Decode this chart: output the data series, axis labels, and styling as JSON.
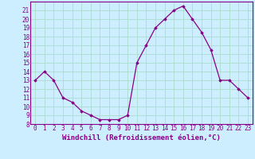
{
  "hours": [
    0,
    1,
    2,
    3,
    4,
    5,
    6,
    7,
    8,
    9,
    10,
    11,
    12,
    13,
    14,
    15,
    16,
    17,
    18,
    19,
    20,
    21,
    22,
    23
  ],
  "windchill": [
    13,
    14,
    13,
    11,
    10.5,
    9.5,
    9,
    8.5,
    8.5,
    8.5,
    9,
    15,
    17,
    19,
    20,
    21,
    21.5,
    20,
    18.5,
    16.5,
    13,
    13,
    12,
    11
  ],
  "line_color": "#880088",
  "marker": "D",
  "marker_size": 1.8,
  "bg_color": "#cceeff",
  "grid_color": "#aaddcc",
  "xlabel": "Windchill (Refroidissement éolien,°C)",
  "ylabel": "",
  "ylim": [
    8,
    22
  ],
  "xlim": [
    -0.5,
    23.5
  ],
  "yticks": [
    8,
    9,
    10,
    11,
    12,
    13,
    14,
    15,
    16,
    17,
    18,
    19,
    20,
    21
  ],
  "xticks": [
    0,
    1,
    2,
    3,
    4,
    5,
    6,
    7,
    8,
    9,
    10,
    11,
    12,
    13,
    14,
    15,
    16,
    17,
    18,
    19,
    20,
    21,
    22,
    23
  ],
  "tick_label_size": 5.5,
  "xlabel_size": 6.5,
  "tick_color": "#880088",
  "label_color": "#880088",
  "spine_color": "#880088"
}
